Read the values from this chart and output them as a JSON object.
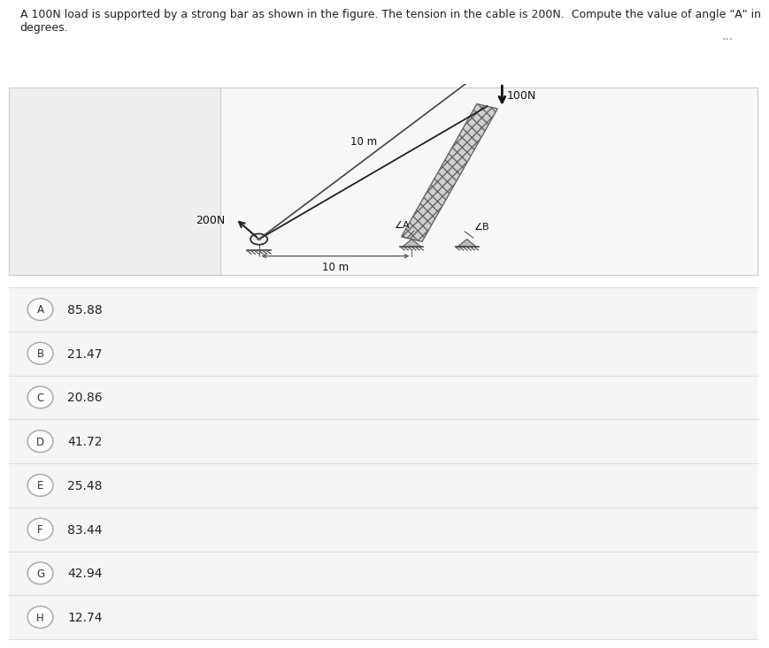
{
  "title_text": "A 100N load is supported by a strong bar as shown in the figure. The tension in the cable is 200N.  Compute the value of angle \"A\" in\ndegrees.",
  "title_fontsize": 9,
  "bg_color": "#ffffff",
  "options": [
    {
      "label": "A",
      "value": "85.88"
    },
    {
      "label": "B",
      "value": "21.47"
    },
    {
      "label": "C",
      "value": "20.86"
    },
    {
      "label": "D",
      "value": "41.72"
    },
    {
      "label": "E",
      "value": "25.48"
    },
    {
      "label": "F",
      "value": "83.44"
    },
    {
      "label": "G",
      "value": "42.94"
    },
    {
      "label": "H",
      "value": "12.74"
    }
  ],
  "dots": "...",
  "panel_left_bg": "#eeeeee",
  "panel_right_bg": "#f7f7f7",
  "option_sep_color": "#dddddd",
  "diagram_bg": "#f2f2f2"
}
